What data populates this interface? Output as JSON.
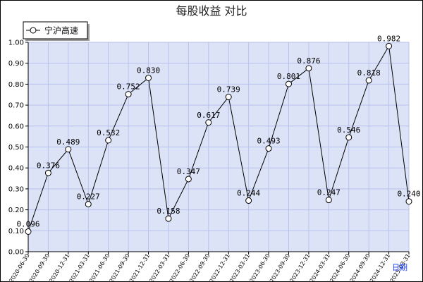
{
  "chart_data": {
    "type": "line",
    "title": "每股收益  对比",
    "xlabel": "日期",
    "ylabel": "",
    "ylim": [
      0,
      1.0
    ],
    "yticks": [
      "0.00",
      "0.10",
      "0.20",
      "0.30",
      "0.40",
      "0.50",
      "0.60",
      "0.70",
      "0.80",
      "0.90",
      "1.00"
    ],
    "grid": true,
    "legend_position": "top-left",
    "categories": [
      "2020-06-30",
      "2020-09-30",
      "2020-12-31",
      "2021-03-31",
      "2021-06-30",
      "2021-09-30",
      "2021-12-31",
      "2022-03-31",
      "2022-06-30",
      "2022-09-30",
      "2022-12-31",
      "2023-03-31",
      "2023-06-30",
      "2023-09-30",
      "2023-12-31",
      "2024-03-31",
      "2024-06-30",
      "2024-09-30",
      "2024-12-31",
      "2025-03-31"
    ],
    "series": [
      {
        "name": "宁沪高速",
        "values": [
          0.096,
          0.376,
          0.489,
          0.227,
          0.532,
          0.752,
          0.83,
          0.158,
          0.347,
          0.617,
          0.739,
          0.244,
          0.493,
          0.801,
          0.876,
          0.247,
          0.546,
          0.818,
          0.982,
          0.24
        ],
        "labels": [
          "0.096",
          "0.376",
          "0.489",
          "0.227",
          "0.532",
          "0.752",
          "0.830",
          "0.158",
          "0.347",
          "0.617",
          "0.739",
          "0.244",
          "0.493",
          "0.801",
          "0.876",
          "0.247",
          "0.546",
          "0.818",
          "0.982",
          "0.240"
        ]
      }
    ],
    "colors": {
      "plot_bg": "#dde3f7",
      "grid": "#b7c2ec",
      "line": "#000000",
      "marker_fill": "#ffffff",
      "frame": "#000000",
      "unit_label": "#1a3cff"
    }
  }
}
